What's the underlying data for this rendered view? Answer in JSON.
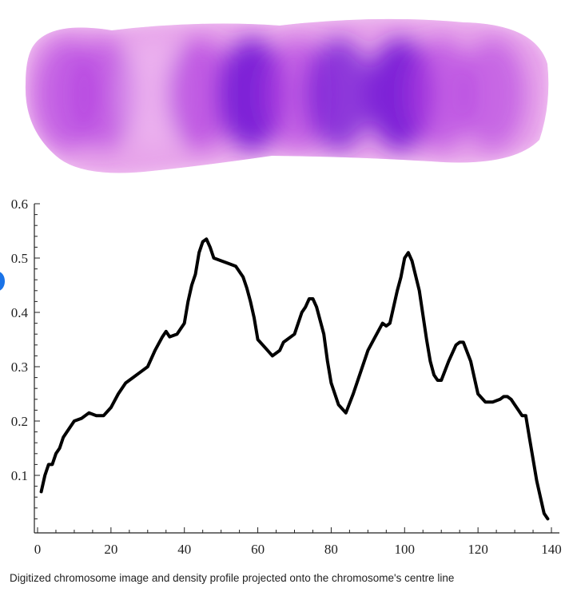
{
  "caption": "Digitized chromosome image and density profile projected onto the chromosome's centre line",
  "colors": {
    "line": "#000000",
    "axis": "#222222",
    "chromosome_light": "#e48ce8",
    "chromosome_dark": "#7a1fd6",
    "indicator": "#1a73e8"
  },
  "chromosome_image": {
    "bands": [
      {
        "position": 0.07,
        "intensity": 0.55
      },
      {
        "position": 0.14,
        "intensity": 0.45
      },
      {
        "position": 0.24,
        "intensity": 0.18
      },
      {
        "position": 0.33,
        "intensity": 0.6
      },
      {
        "position": 0.43,
        "intensity": 0.95
      },
      {
        "position": 0.52,
        "intensity": 0.55
      },
      {
        "position": 0.6,
        "intensity": 0.75
      },
      {
        "position": 0.72,
        "intensity": 0.95
      },
      {
        "position": 0.8,
        "intensity": 0.55
      },
      {
        "position": 0.9,
        "intensity": 0.45
      }
    ]
  },
  "chart_data": {
    "type": "line",
    "title": "",
    "xlabel": "",
    "ylabel": "",
    "xlim": [
      0,
      140
    ],
    "ylim": [
      0,
      0.6
    ],
    "xticks": [
      0,
      20,
      40,
      60,
      80,
      100,
      120,
      140
    ],
    "xtick_labels": [
      "0",
      "20",
      "40",
      "60",
      "80",
      "100",
      "120",
      "140"
    ],
    "yticks": [
      0.1,
      0.2,
      0.3,
      0.4,
      0.5,
      0.6
    ],
    "ytick_labels": [
      "0.1",
      "0.2",
      "0.3",
      "0.4",
      "0.5",
      "0.6"
    ],
    "grid": false,
    "series": [
      {
        "x": [
          1,
          2,
          3,
          4,
          5,
          6,
          7,
          8,
          10,
          12,
          14,
          16,
          18,
          20,
          22,
          24,
          26,
          28,
          30,
          32,
          34,
          35,
          36,
          38,
          40,
          41,
          42,
          43,
          44,
          45,
          46,
          47,
          48,
          50,
          52,
          54,
          56,
          57,
          58,
          59,
          60,
          62,
          64,
          66,
          67,
          68,
          70,
          72,
          73,
          74,
          75,
          76,
          78,
          79,
          80,
          82,
          84,
          86,
          88,
          90,
          92,
          94,
          95,
          96,
          98,
          99,
          100,
          101,
          102,
          104,
          106,
          107,
          108,
          109,
          110,
          112,
          114,
          115,
          116,
          118,
          119,
          120,
          122,
          124,
          126,
          127,
          128,
          129,
          130,
          131,
          132,
          133,
          134,
          135,
          136,
          137,
          138,
          139
        ],
        "y": [
          0.07,
          0.1,
          0.12,
          0.12,
          0.14,
          0.15,
          0.17,
          0.18,
          0.2,
          0.205,
          0.215,
          0.21,
          0.21,
          0.225,
          0.25,
          0.27,
          0.28,
          0.29,
          0.3,
          0.33,
          0.355,
          0.365,
          0.355,
          0.36,
          0.38,
          0.42,
          0.45,
          0.47,
          0.51,
          0.53,
          0.535,
          0.52,
          0.5,
          0.495,
          0.49,
          0.485,
          0.465,
          0.445,
          0.42,
          0.39,
          0.35,
          0.335,
          0.32,
          0.33,
          0.345,
          0.35,
          0.36,
          0.4,
          0.41,
          0.425,
          0.425,
          0.41,
          0.36,
          0.31,
          0.27,
          0.23,
          0.215,
          0.25,
          0.29,
          0.33,
          0.355,
          0.38,
          0.375,
          0.38,
          0.44,
          0.465,
          0.5,
          0.51,
          0.495,
          0.44,
          0.35,
          0.31,
          0.285,
          0.275,
          0.275,
          0.31,
          0.34,
          0.345,
          0.345,
          0.31,
          0.28,
          0.25,
          0.235,
          0.235,
          0.24,
          0.245,
          0.245,
          0.24,
          0.23,
          0.22,
          0.21,
          0.21,
          0.17,
          0.13,
          0.09,
          0.06,
          0.03,
          0.02
        ]
      }
    ]
  }
}
